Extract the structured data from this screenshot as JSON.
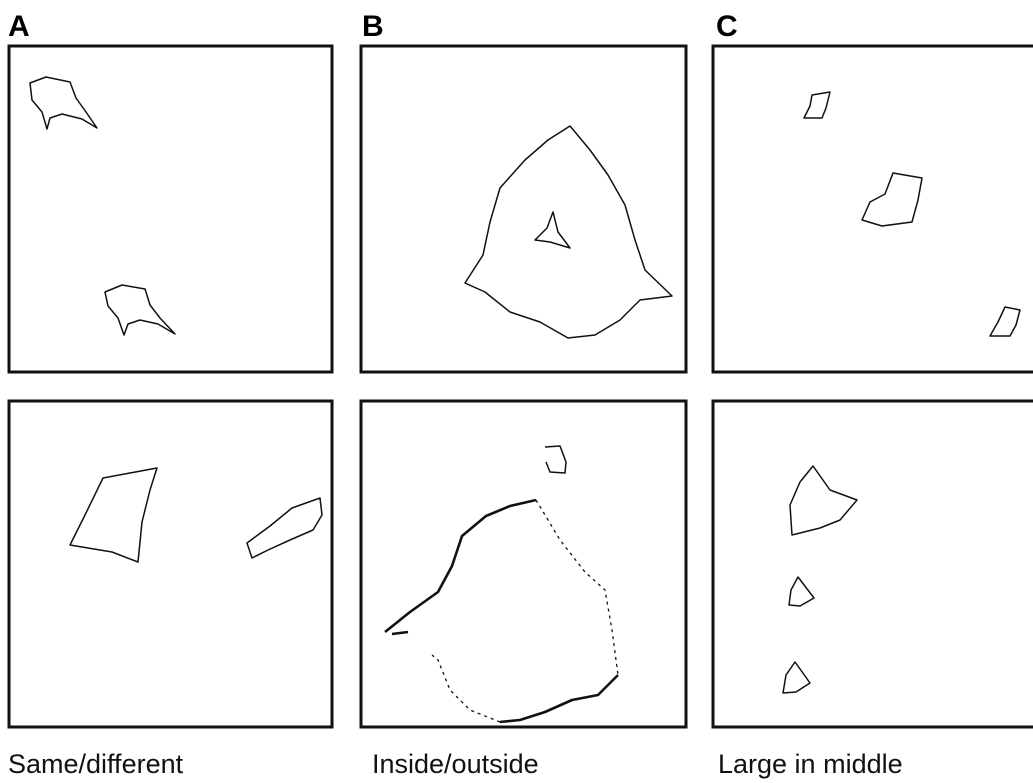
{
  "panels": [
    {
      "letter": "A",
      "caption": "Same/different"
    },
    {
      "letter": "B",
      "caption": "Inside/outside"
    },
    {
      "letter": "C",
      "caption": "Large in middle"
    }
  ]
}
